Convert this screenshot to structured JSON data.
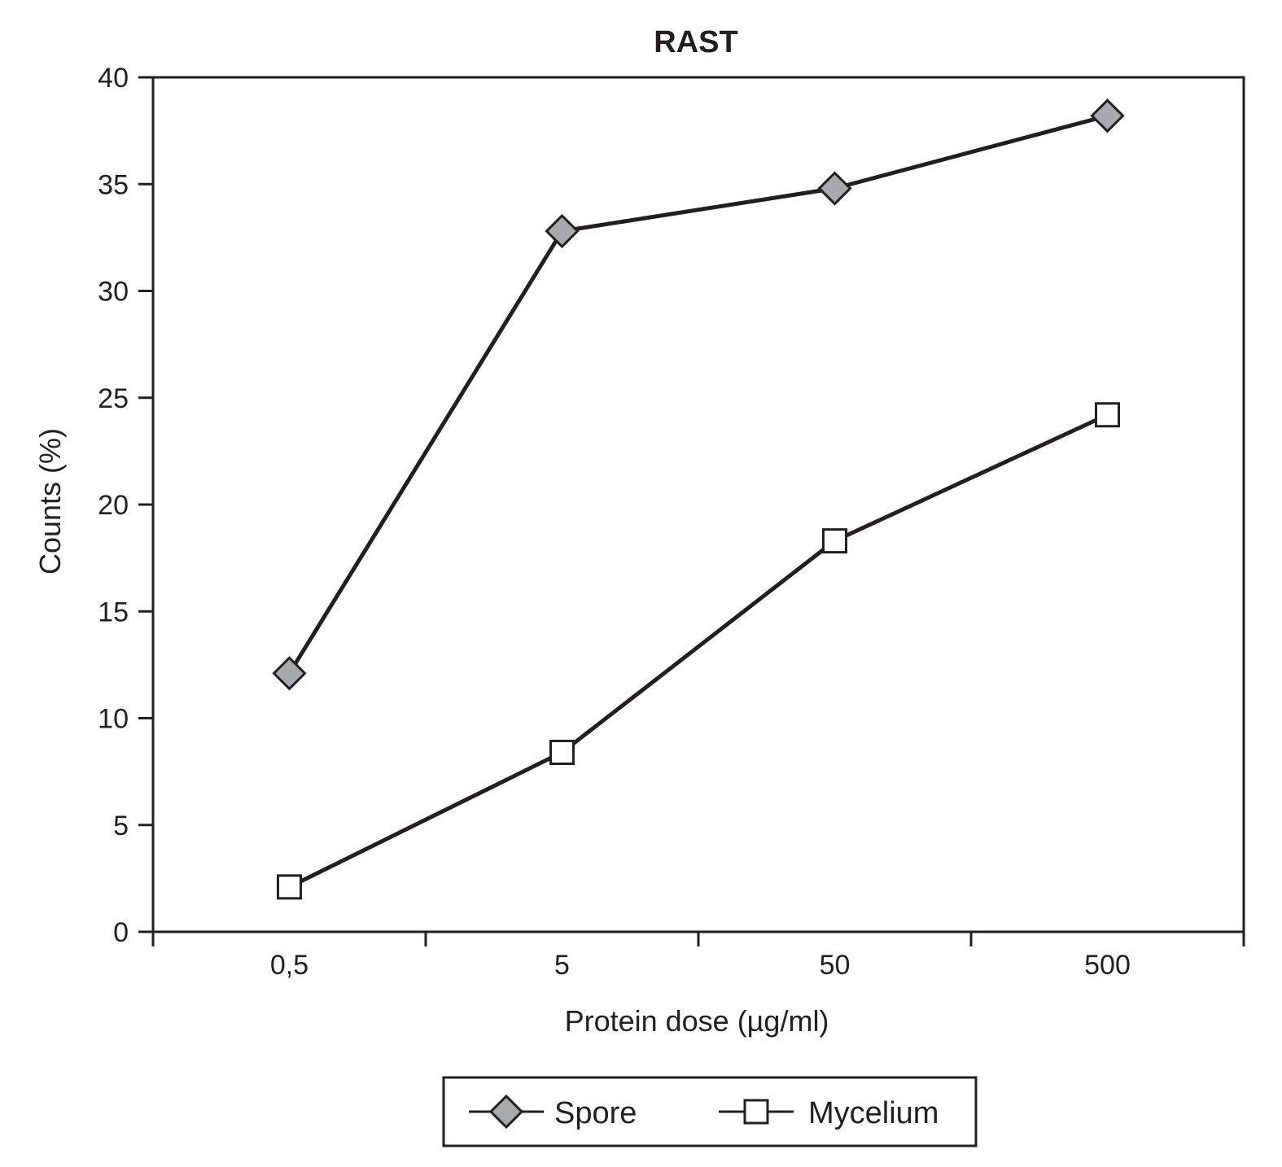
{
  "chart_data": {
    "type": "line",
    "title": "RAST",
    "xlabel": "Protein dose (µg/ml)",
    "ylabel": "Counts (%)",
    "categories": [
      "0,5",
      "5",
      "50",
      "500"
    ],
    "ylim": [
      0,
      40
    ],
    "yticks": [
      "0",
      "5",
      "10",
      "15",
      "20",
      "25",
      "30",
      "35",
      "40"
    ],
    "series": [
      {
        "name": "Spore",
        "marker": "diamond",
        "fill": "#a7a9ac",
        "values": [
          12.1,
          32.8,
          34.8,
          38.2
        ]
      },
      {
        "name": "Mycelium",
        "marker": "square",
        "fill": "#ffffff",
        "values": [
          2.1,
          8.4,
          18.3,
          24.2
        ]
      }
    ],
    "grid": false,
    "legend": "bottom",
    "colors": {
      "line": "#231f20",
      "frame": "#231f20"
    }
  }
}
